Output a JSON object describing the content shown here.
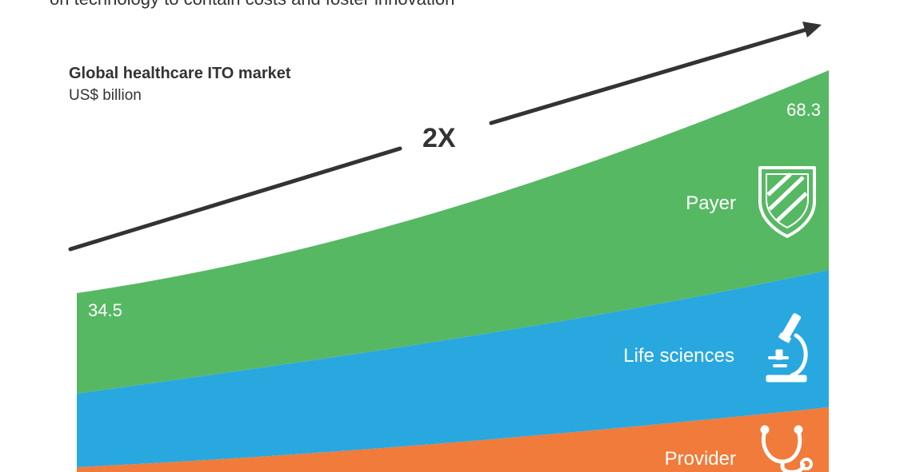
{
  "subtitle": "on technology to contain costs and foster innovation",
  "chart_data": {
    "type": "area",
    "title": "Global healthcare ITO market",
    "unit": "US$ billion",
    "growth_label": "2X",
    "start_value_label": "34.5",
    "end_value_label": "68.3",
    "series": [
      {
        "name": "Provider",
        "color": "#F07B3A",
        "icon": "stethoscope-icon"
      },
      {
        "name": "Life sciences",
        "color": "#29A8E0",
        "icon": "microscope-icon"
      },
      {
        "name": "Payer",
        "color": "#57B864",
        "icon": "shield-icon"
      }
    ],
    "totals": [
      34.5,
      68.3
    ]
  }
}
